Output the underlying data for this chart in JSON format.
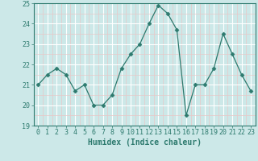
{
  "x": [
    0,
    1,
    2,
    3,
    4,
    5,
    6,
    7,
    8,
    9,
    10,
    11,
    12,
    13,
    14,
    15,
    16,
    17,
    18,
    19,
    20,
    21,
    22,
    23
  ],
  "y": [
    21.0,
    21.5,
    21.8,
    21.5,
    20.7,
    21.0,
    20.0,
    20.0,
    20.5,
    21.8,
    22.5,
    23.0,
    24.0,
    24.9,
    24.5,
    23.7,
    19.5,
    21.0,
    21.0,
    21.8,
    23.5,
    22.5,
    21.5,
    20.7
  ],
  "line_color": "#2d7a6e",
  "marker": "D",
  "marker_size": 2.5,
  "bg_color": "#cce8e8",
  "grid_color": "#f0f0f0",
  "xlabel": "Humidex (Indice chaleur)",
  "ylim": [
    19,
    25
  ],
  "xlim": [
    -0.5,
    23.5
  ],
  "yticks": [
    19,
    20,
    21,
    22,
    23,
    24,
    25
  ],
  "xticks": [
    0,
    1,
    2,
    3,
    4,
    5,
    6,
    7,
    8,
    9,
    10,
    11,
    12,
    13,
    14,
    15,
    16,
    17,
    18,
    19,
    20,
    21,
    22,
    23
  ],
  "tick_color": "#2d7a6e",
  "label_fontsize": 6,
  "axis_fontsize": 7,
  "grid_major_color": "#e8e8e8",
  "grid_minor_color": "#e8e8e8"
}
